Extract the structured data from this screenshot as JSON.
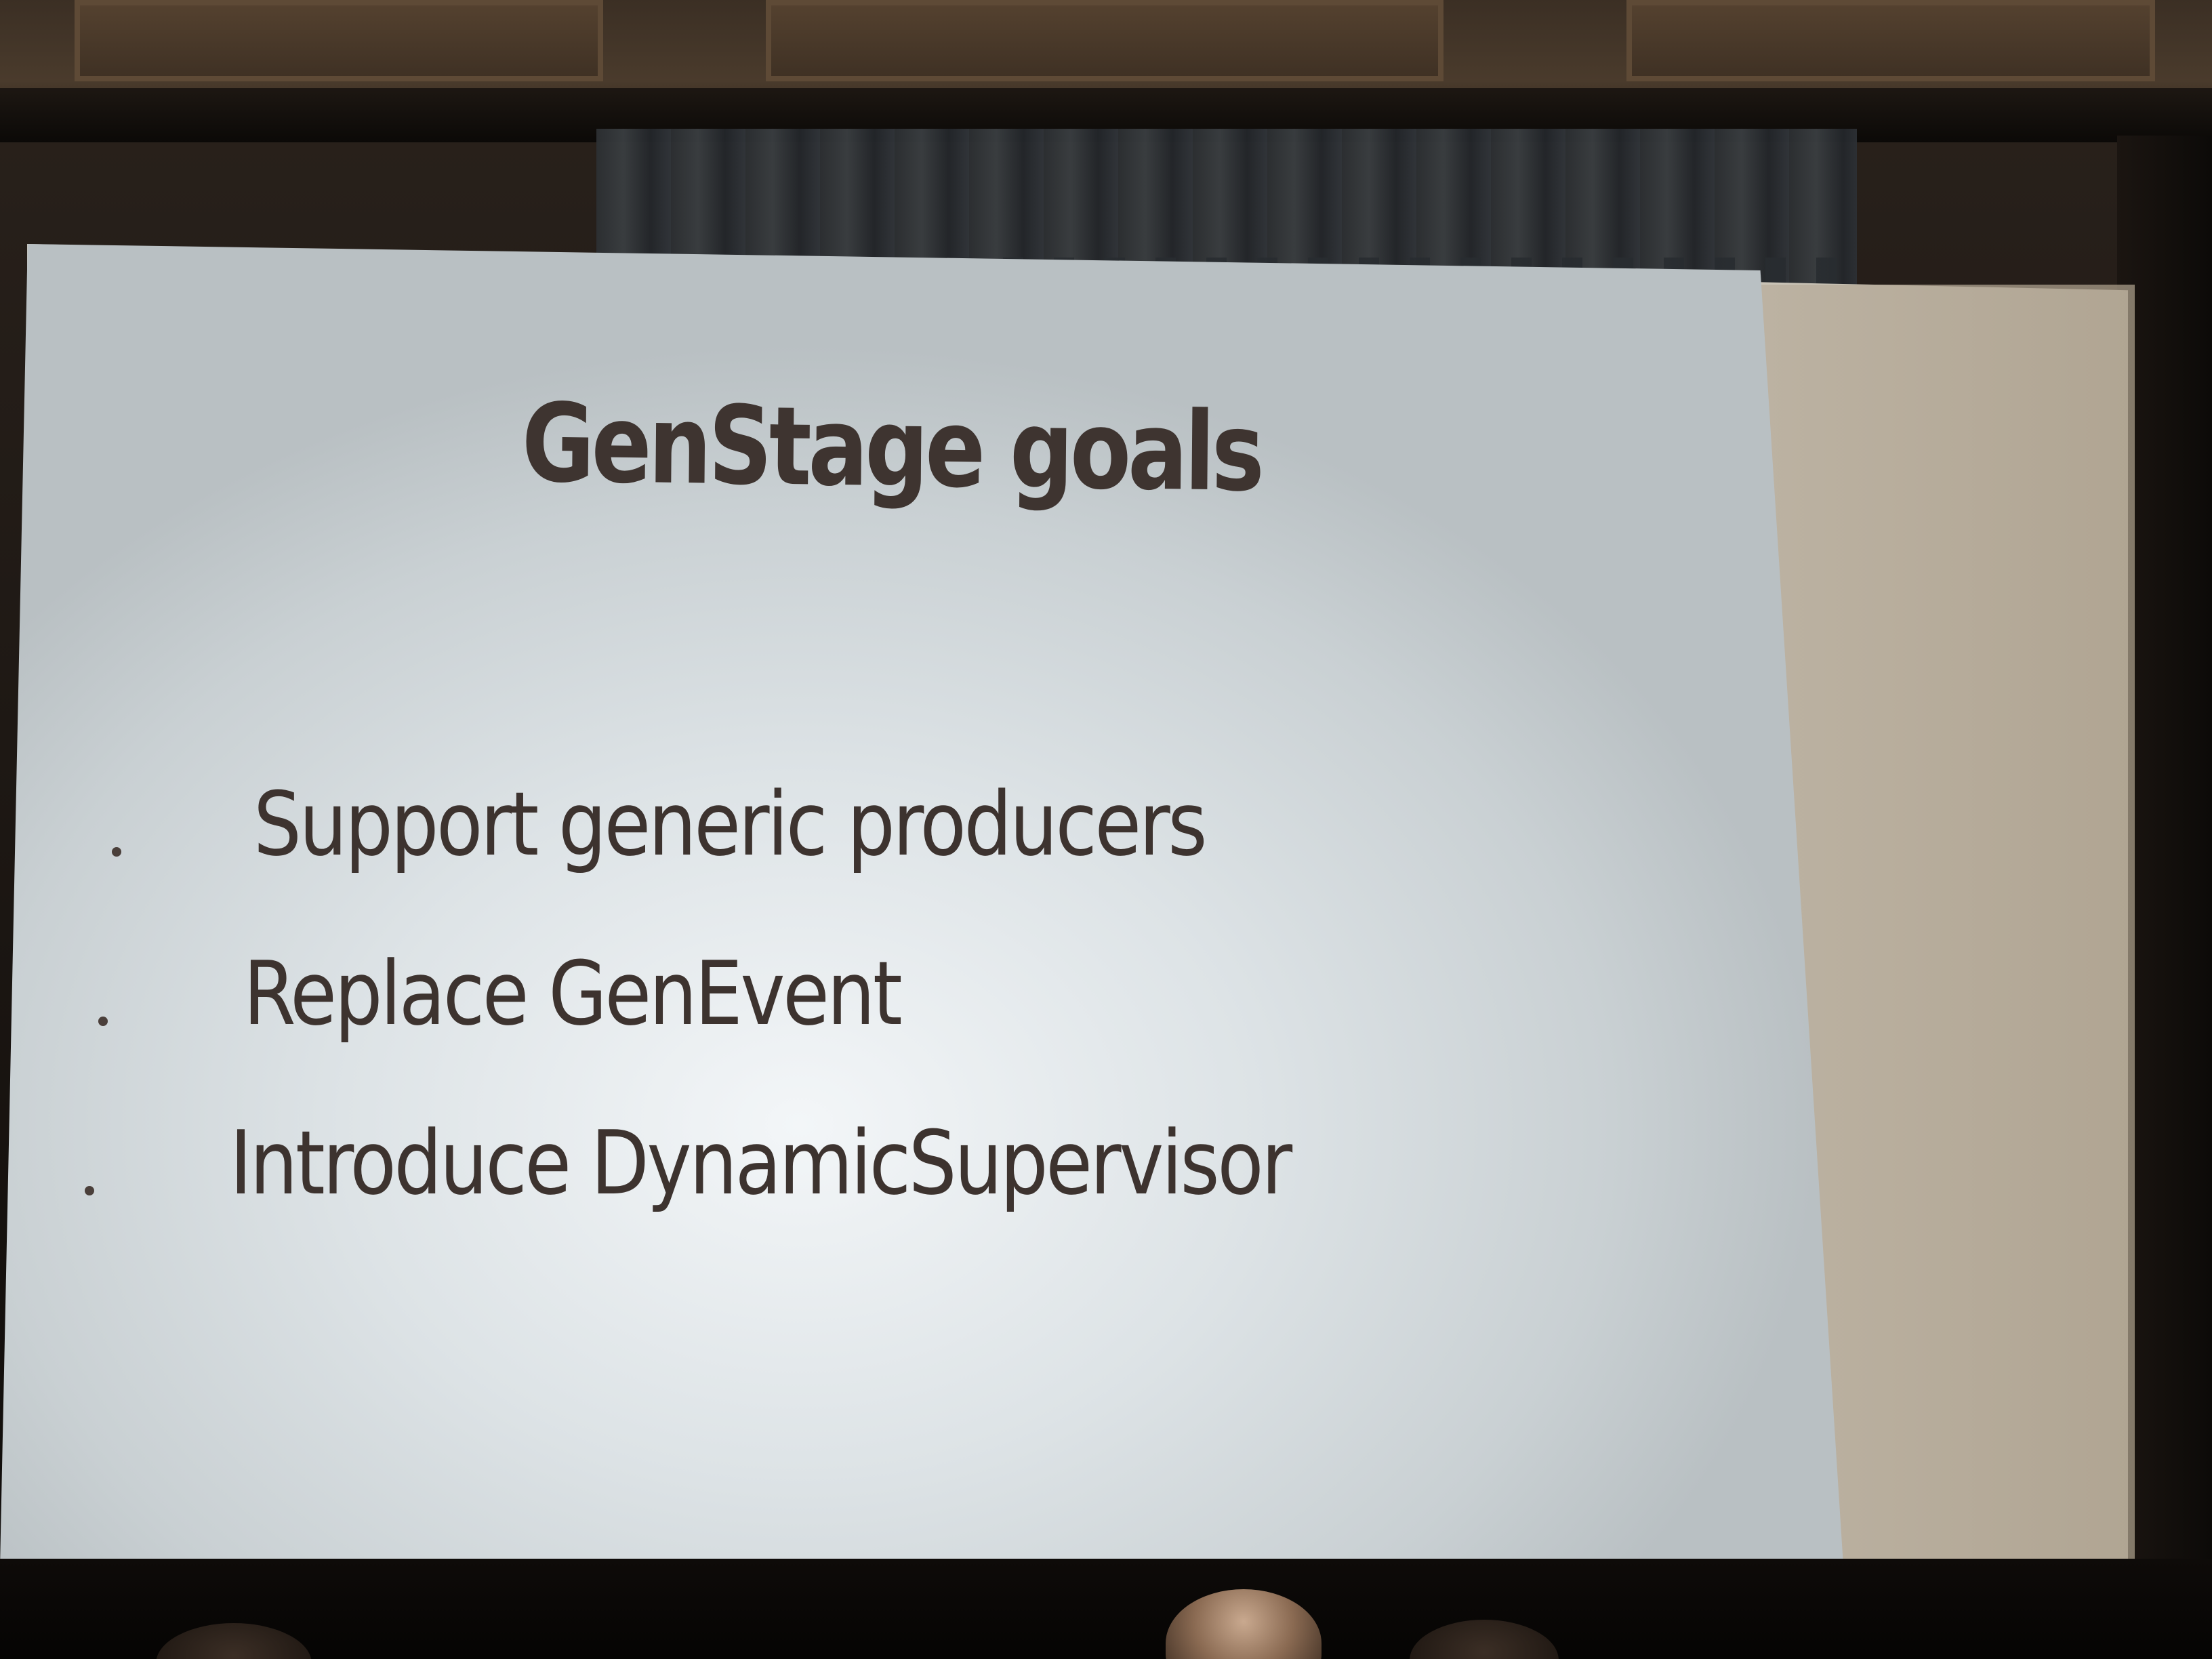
{
  "slide": {
    "title": "GenStage goals",
    "bullets": [
      "Support generic producers",
      "Replace GenEvent",
      "Introduce DynamicSupervisor"
    ]
  },
  "colors": {
    "slide_text": "#3d332f",
    "slide_background": "#dde3e6"
  }
}
